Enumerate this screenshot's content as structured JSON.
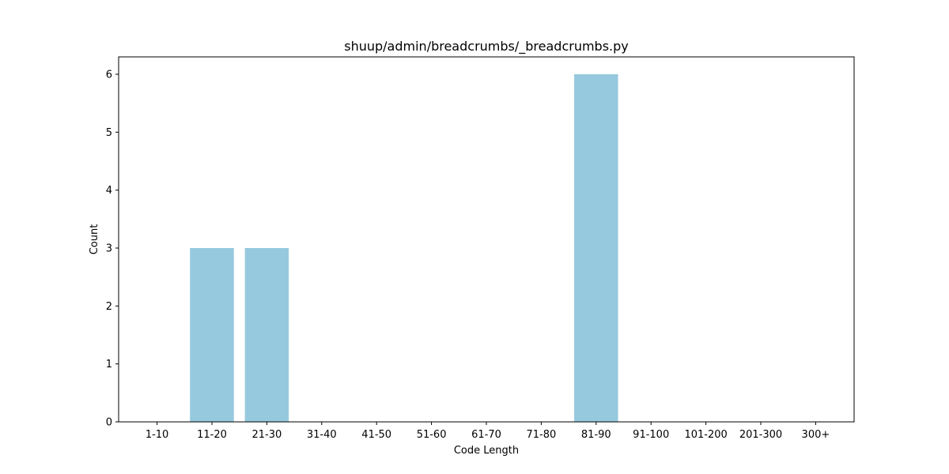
{
  "chart_data": {
    "type": "bar",
    "title": "shuup/admin/breadcrumbs/_breadcrumbs.py",
    "xlabel": "Code Length",
    "ylabel": "Count",
    "categories": [
      "1-10",
      "11-20",
      "21-30",
      "31-40",
      "41-50",
      "51-60",
      "61-70",
      "71-80",
      "81-90",
      "91-100",
      "101-200",
      "201-300",
      "300+"
    ],
    "values": [
      0,
      3,
      3,
      0,
      0,
      0,
      0,
      0,
      6,
      0,
      0,
      0,
      0
    ],
    "yticks": [
      0,
      1,
      2,
      3,
      4,
      5,
      6
    ],
    "ylim": [
      0,
      6.3
    ],
    "bar_color": "#96c9dd",
    "grid": false,
    "legend": "none"
  }
}
